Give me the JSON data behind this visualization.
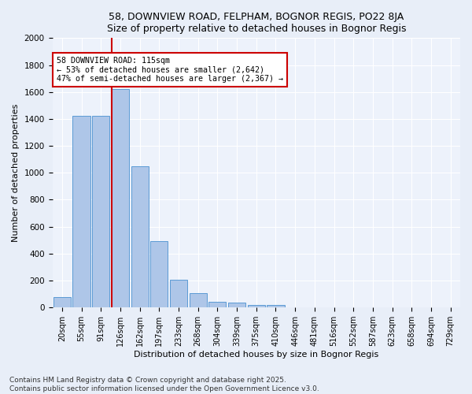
{
  "title1": "58, DOWNVIEW ROAD, FELPHAM, BOGNOR REGIS, PO22 8JA",
  "title2": "Size of property relative to detached houses in Bognor Regis",
  "xlabel": "Distribution of detached houses by size in Bognor Regis",
  "ylabel": "Number of detached properties",
  "bar_labels": [
    "20sqm",
    "55sqm",
    "91sqm",
    "126sqm",
    "162sqm",
    "197sqm",
    "233sqm",
    "268sqm",
    "304sqm",
    "339sqm",
    "375sqm",
    "410sqm",
    "446sqm",
    "481sqm",
    "516sqm",
    "552sqm",
    "587sqm",
    "623sqm",
    "658sqm",
    "694sqm",
    "729sqm"
  ],
  "bar_values": [
    75,
    1420,
    1420,
    1620,
    1050,
    490,
    205,
    105,
    45,
    35,
    20,
    20,
    0,
    0,
    0,
    0,
    0,
    0,
    0,
    0,
    0
  ],
  "bar_color": "#aec6e8",
  "bar_edge_color": "#5b9bd5",
  "marker_line_color": "#cc0000",
  "annotation_line1": "58 DOWNVIEW ROAD: 115sqm",
  "annotation_line2": "← 53% of detached houses are smaller (2,642)",
  "annotation_line3": "47% of semi-detached houses are larger (2,367) →",
  "annotation_box_facecolor": "#ffffff",
  "annotation_box_edgecolor": "#cc0000",
  "ylim": [
    0,
    2000
  ],
  "yticks": [
    0,
    200,
    400,
    600,
    800,
    1000,
    1200,
    1400,
    1600,
    1800,
    2000
  ],
  "footer1": "Contains HM Land Registry data © Crown copyright and database right 2025.",
  "footer2": "Contains public sector information licensed under the Open Government Licence v3.0.",
  "bg_color": "#e8eef8",
  "plot_bg_color": "#edf2fb",
  "grid_color": "#ffffff",
  "title_fontsize": 9,
  "tick_fontsize": 7,
  "axis_label_fontsize": 8,
  "footer_fontsize": 6.5
}
